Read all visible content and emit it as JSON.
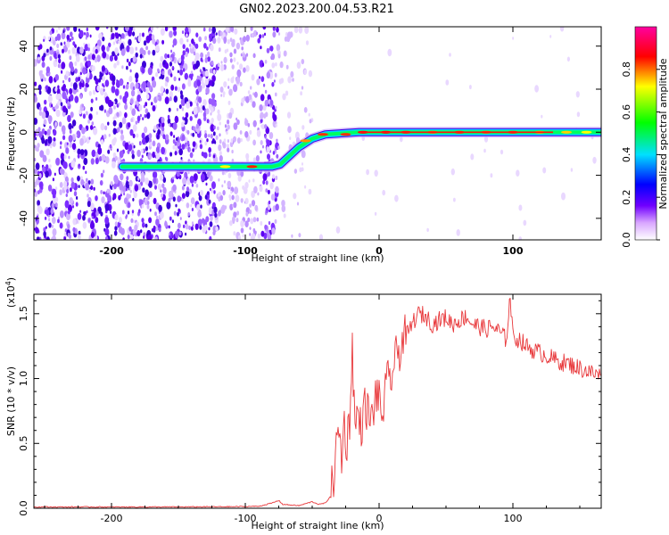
{
  "title": "GN02.2023.200.04.53.R21",
  "spectrogram": {
    "type": "heatmap",
    "xlabel": "Height of straight line (km)",
    "ylabel": "Frequency (Hz)",
    "xlim": [
      -258,
      166
    ],
    "ylim": [
      -50,
      49
    ],
    "xticks": [
      -200,
      -100,
      0,
      100
    ],
    "yticks": [
      -40,
      -20,
      0,
      20,
      40
    ],
    "ridge": {
      "points": [
        [
          -192,
          -16
        ],
        [
          -80,
          -16
        ],
        [
          -74,
          -15
        ],
        [
          -60,
          -7
        ],
        [
          -50,
          -3
        ],
        [
          -40,
          -1
        ],
        [
          -15,
          0
        ],
        [
          0,
          0
        ],
        [
          166,
          0
        ]
      ]
    },
    "colorbar": {
      "label": "Normalized spectral amplitude",
      "range": [
        0.0,
        1.0
      ],
      "ticks": [
        0.0,
        0.2,
        0.4,
        0.6,
        0.8
      ],
      "colors": [
        "#ffffff",
        "#7000ff",
        "#0000ff",
        "#00e0ff",
        "#00ff00",
        "#ffff00",
        "#ff0000",
        "#ff00a0"
      ]
    }
  },
  "chart_data": {
    "type": "line",
    "xlabel": "Height of straight line (km)",
    "ylabel": "SNR (10 * v/v)",
    "scale_note": "(x10^4)",
    "scale_base": "(x10",
    "scale_exp": "4",
    "scale_close": ")",
    "xlim": [
      -258,
      166
    ],
    "ylim": [
      0,
      1.65
    ],
    "xticks": [
      -200,
      -100,
      0,
      100
    ],
    "yticks": [
      0.0,
      0.5,
      1.0,
      1.5
    ],
    "series": [
      {
        "color": "#e8373a",
        "points": [
          [
            -258,
            0.01
          ],
          [
            -150,
            0.01
          ],
          [
            -110,
            0.012
          ],
          [
            -90,
            0.015
          ],
          [
            -80,
            0.04
          ],
          [
            -75,
            0.06
          ],
          [
            -72,
            0.03
          ],
          [
            -60,
            0.02
          ],
          [
            -50,
            0.05
          ],
          [
            -45,
            0.03
          ],
          [
            -40,
            0.04
          ],
          [
            -36,
            0.1
          ],
          [
            -34,
            0.25
          ],
          [
            -32,
            0.45
          ],
          [
            -30,
            0.6
          ],
          [
            -28,
            0.4
          ],
          [
            -26,
            0.65
          ],
          [
            -24,
            0.5
          ],
          [
            -22,
            0.7
          ],
          [
            -20,
            1.25
          ],
          [
            -18,
            0.6
          ],
          [
            -16,
            0.75
          ],
          [
            -14,
            0.62
          ],
          [
            -10,
            0.8
          ],
          [
            -6,
            0.65
          ],
          [
            -2,
            0.9
          ],
          [
            2,
            0.72
          ],
          [
            6,
            0.95
          ],
          [
            10,
            1.05
          ],
          [
            14,
            1.2
          ],
          [
            18,
            1.3
          ],
          [
            22,
            1.35
          ],
          [
            26,
            1.45
          ],
          [
            30,
            1.5
          ],
          [
            35,
            1.48
          ],
          [
            40,
            1.42
          ],
          [
            45,
            1.45
          ],
          [
            50,
            1.47
          ],
          [
            55,
            1.42
          ],
          [
            60,
            1.45
          ],
          [
            65,
            1.48
          ],
          [
            70,
            1.42
          ],
          [
            75,
            1.4
          ],
          [
            80,
            1.38
          ],
          [
            85,
            1.4
          ],
          [
            90,
            1.36
          ],
          [
            95,
            1.3
          ],
          [
            98,
            1.64
          ],
          [
            100,
            1.32
          ],
          [
            105,
            1.3
          ],
          [
            110,
            1.25
          ],
          [
            115,
            1.22
          ],
          [
            120,
            1.2
          ],
          [
            125,
            1.18
          ],
          [
            130,
            1.15
          ],
          [
            135,
            1.13
          ],
          [
            140,
            1.12
          ],
          [
            145,
            1.1
          ],
          [
            150,
            1.08
          ],
          [
            155,
            1.06
          ],
          [
            160,
            1.04
          ],
          [
            166,
            1.02
          ]
        ]
      }
    ]
  }
}
